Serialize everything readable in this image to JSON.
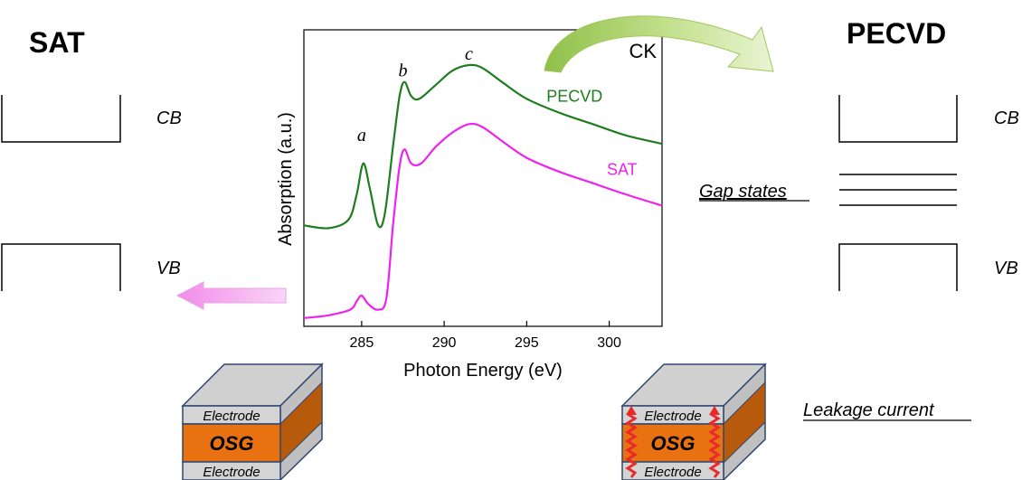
{
  "left_panel": {
    "title": "SAT",
    "cb_label": "CB",
    "vb_label": "VB"
  },
  "right_panel": {
    "title": "PECVD",
    "cb_label": "CB",
    "vb_label": "VB",
    "gap_states_label": "Gap states",
    "leakage_label": "Leakage current"
  },
  "device": {
    "electrode_label": "Electrode",
    "osg_label": "OSG"
  },
  "colors": {
    "pecvd_curve": "#1e7d1e",
    "sat_curve": "#ee22ee",
    "electrode": "#d4d4d4",
    "osg_front": "#e87212",
    "osg_side": "#b85a0c",
    "box_edge": "#2e4670",
    "leakage_arrow": "#e82a2a",
    "pink_arrow": "#f4a8f0",
    "green_arrow": "#a6d060"
  },
  "chart_data": {
    "type": "line",
    "title": "CK",
    "xlabel": "Photon Energy (eV)",
    "ylabel": "Absorption (a.u.)",
    "xlim": [
      281.5,
      303.2
    ],
    "ylim": [
      0,
      1
    ],
    "xticks": [
      "285",
      "290",
      "295",
      "300"
    ],
    "x_tick_values": [
      285,
      290,
      295,
      300
    ],
    "peak_labels": [
      {
        "text": "a",
        "x": 285.0,
        "y": 0.64
      },
      {
        "text": "b",
        "x": 287.5,
        "y": 0.87
      },
      {
        "text": "c",
        "x": 291.5,
        "y": 0.93
      }
    ],
    "series": [
      {
        "name": "PECVD",
        "label_pos": [
          299.6,
          0.78
        ],
        "x": [
          281.5,
          283.0,
          284.2,
          284.7,
          285.1,
          285.5,
          286.0,
          286.4,
          286.9,
          287.3,
          287.6,
          288.0,
          288.5,
          289.5,
          290.5,
          291.5,
          292.3,
          293.5,
          295.0,
          297.0,
          299.0,
          301.0,
          303.2
        ],
        "y": [
          0.34,
          0.33,
          0.36,
          0.45,
          0.56,
          0.47,
          0.34,
          0.38,
          0.62,
          0.8,
          0.85,
          0.8,
          0.79,
          0.84,
          0.89,
          0.91,
          0.9,
          0.85,
          0.79,
          0.74,
          0.7,
          0.66,
          0.63
        ]
      },
      {
        "name": "SAT",
        "label_pos": [
          301.7,
          0.52
        ],
        "x": [
          281.5,
          283.0,
          284.3,
          284.7,
          285.0,
          285.4,
          286.0,
          286.5,
          286.9,
          287.3,
          287.6,
          288.0,
          288.6,
          289.5,
          290.5,
          291.5,
          292.3,
          293.5,
          295.0,
          297.0,
          299.0,
          301.0,
          303.2
        ],
        "y": [
          0.01,
          0.02,
          0.04,
          0.07,
          0.09,
          0.06,
          0.04,
          0.08,
          0.34,
          0.55,
          0.61,
          0.56,
          0.56,
          0.62,
          0.67,
          0.7,
          0.69,
          0.64,
          0.58,
          0.53,
          0.49,
          0.45,
          0.41
        ]
      }
    ]
  }
}
